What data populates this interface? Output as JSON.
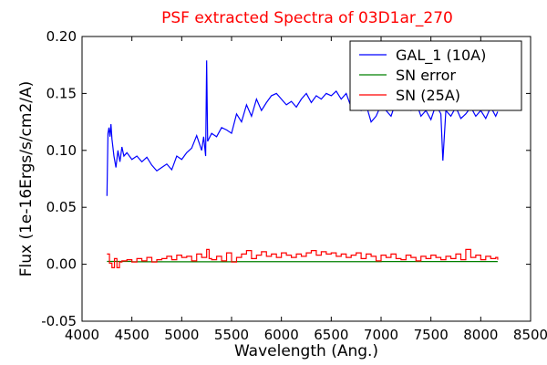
{
  "chart_data": {
    "type": "line",
    "title": "PSF extracted Spectra of 03D1ar_270",
    "title_color": "#ff0000",
    "xlabel": "Wavelength (Ang.)",
    "ylabel": "Flux (1e-16Ergs/s/cm2/A)",
    "xlim": [
      4000,
      8500
    ],
    "ylim": [
      -0.05,
      0.2
    ],
    "xticks": [
      4000,
      4500,
      5000,
      5500,
      6000,
      6500,
      7000,
      7500,
      8000,
      8500
    ],
    "yticks": [
      -0.05,
      0.0,
      0.05,
      0.1,
      0.15,
      0.2
    ],
    "xtick_labels": [
      "4000",
      "4500",
      "5000",
      "5500",
      "6000",
      "6500",
      "7000",
      "7500",
      "8000",
      "8500"
    ],
    "ytick_labels": [
      "-0.05",
      "0.00",
      "0.05",
      "0.10",
      "0.15",
      "0.20"
    ],
    "grid": false,
    "legend_position": "top-right",
    "series": [
      {
        "name": "GAL_1 (10A)",
        "color": "#0000ff",
        "step": false,
        "x": [
          4250,
          4260,
          4270,
          4280,
          4290,
          4300,
          4320,
          4340,
          4360,
          4380,
          4400,
          4420,
          4450,
          4500,
          4550,
          4600,
          4650,
          4700,
          4750,
          4800,
          4850,
          4900,
          4950,
          5000,
          5050,
          5100,
          5150,
          5200,
          5220,
          5240,
          5250,
          5260,
          5300,
          5350,
          5400,
          5450,
          5500,
          5550,
          5600,
          5650,
          5700,
          5750,
          5800,
          5850,
          5900,
          5950,
          6000,
          6050,
          6100,
          6150,
          6200,
          6250,
          6300,
          6350,
          6400,
          6450,
          6500,
          6550,
          6600,
          6650,
          6700,
          6750,
          6800,
          6850,
          6900,
          6950,
          7000,
          7050,
          7100,
          7150,
          7200,
          7250,
          7300,
          7350,
          7400,
          7450,
          7500,
          7550,
          7600,
          7620,
          7650,
          7700,
          7750,
          7800,
          7850,
          7900,
          7950,
          8000,
          8050,
          8100,
          8150,
          8170
        ],
        "y": [
          0.06,
          0.115,
          0.12,
          0.112,
          0.123,
          0.11,
          0.095,
          0.085,
          0.1,
          0.09,
          0.103,
          0.095,
          0.098,
          0.092,
          0.095,
          0.09,
          0.094,
          0.087,
          0.082,
          0.085,
          0.088,
          0.083,
          0.095,
          0.092,
          0.098,
          0.102,
          0.113,
          0.1,
          0.112,
          0.095,
          0.179,
          0.108,
          0.115,
          0.112,
          0.12,
          0.118,
          0.115,
          0.132,
          0.125,
          0.14,
          0.13,
          0.145,
          0.135,
          0.142,
          0.148,
          0.15,
          0.145,
          0.14,
          0.143,
          0.138,
          0.145,
          0.15,
          0.142,
          0.148,
          0.145,
          0.15,
          0.148,
          0.152,
          0.145,
          0.15,
          0.138,
          0.142,
          0.135,
          0.14,
          0.125,
          0.13,
          0.14,
          0.135,
          0.13,
          0.143,
          0.138,
          0.136,
          0.135,
          0.143,
          0.13,
          0.135,
          0.127,
          0.14,
          0.132,
          0.091,
          0.135,
          0.13,
          0.138,
          0.128,
          0.132,
          0.138,
          0.13,
          0.135,
          0.128,
          0.138,
          0.13,
          0.134
        ]
      },
      {
        "name": "SN error",
        "color": "#008000",
        "step": true,
        "x": [
          4250,
          4500,
          5000,
          5500,
          6000,
          6500,
          7000,
          7500,
          8000,
          8170
        ],
        "y": [
          0.0025,
          0.0022,
          0.0022,
          0.0023,
          0.0023,
          0.0023,
          0.0024,
          0.0024,
          0.0024,
          0.0024
        ]
      },
      {
        "name": "SN (25A)",
        "color": "#ff0000",
        "step": true,
        "x": [
          4250,
          4275,
          4300,
          4325,
          4350,
          4375,
          4400,
          4450,
          4500,
          4550,
          4600,
          4650,
          4700,
          4750,
          4800,
          4850,
          4900,
          4950,
          5000,
          5050,
          5100,
          5150,
          5200,
          5250,
          5275,
          5300,
          5350,
          5400,
          5450,
          5500,
          5550,
          5600,
          5650,
          5700,
          5750,
          5800,
          5850,
          5900,
          5950,
          6000,
          6050,
          6100,
          6150,
          6200,
          6250,
          6300,
          6350,
          6400,
          6450,
          6500,
          6550,
          6600,
          6650,
          6700,
          6750,
          6800,
          6850,
          6900,
          6950,
          7000,
          7050,
          7100,
          7150,
          7200,
          7250,
          7300,
          7350,
          7400,
          7450,
          7500,
          7550,
          7600,
          7650,
          7700,
          7750,
          7800,
          7850,
          7900,
          7950,
          8000,
          8050,
          8100,
          8150,
          8170
        ],
        "y": [
          0.009,
          0.001,
          -0.003,
          0.005,
          -0.003,
          0.002,
          0.003,
          0.004,
          0.002,
          0.005,
          0.003,
          0.006,
          0.002,
          0.004,
          0.005,
          0.007,
          0.004,
          0.008,
          0.006,
          0.007,
          0.003,
          0.009,
          0.006,
          0.013,
          0.005,
          0.004,
          0.007,
          0.003,
          0.01,
          0.002,
          0.006,
          0.009,
          0.012,
          0.005,
          0.008,
          0.011,
          0.007,
          0.009,
          0.006,
          0.01,
          0.008,
          0.006,
          0.009,
          0.007,
          0.01,
          0.012,
          0.008,
          0.011,
          0.009,
          0.01,
          0.007,
          0.009,
          0.006,
          0.008,
          0.01,
          0.005,
          0.009,
          0.007,
          0.003,
          0.008,
          0.006,
          0.009,
          0.005,
          0.004,
          0.008,
          0.006,
          0.003,
          0.007,
          0.005,
          0.008,
          0.006,
          0.004,
          0.007,
          0.005,
          0.009,
          0.004,
          0.013,
          0.006,
          0.008,
          0.004,
          0.007,
          0.005,
          0.006,
          0.004
        ]
      }
    ]
  }
}
